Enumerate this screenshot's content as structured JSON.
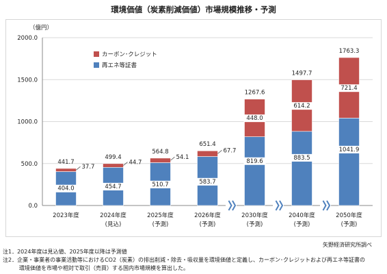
{
  "title": "環境価値（炭素削減価値）市場規模推移・予測",
  "colors": {
    "renewable": "#4f81bd",
    "credit": "#c0504d",
    "grid": "#d9d9d9",
    "axis": "#888888"
  },
  "chart_data": {
    "type": "bar",
    "stacked": true,
    "unit_label": "（億円）",
    "ylim": [
      0,
      2000
    ],
    "y_ticks": [
      "0.0",
      "500.0",
      "1000.0",
      "1500.0",
      "2000.0"
    ],
    "y_tick_values": [
      0,
      500,
      1000,
      1500,
      2000
    ],
    "grid": true,
    "legend_position": "top-left",
    "categories": [
      "2023年度",
      "2024年度",
      "2025年度",
      "2026年度",
      "2030年度",
      "2040年度",
      "2050年度"
    ],
    "category_sublabels": [
      "",
      "(見込)",
      "(予測)",
      "(予測)",
      "(予測)",
      "(予測)",
      "(予測)"
    ],
    "axis_breaks_before": [
      4,
      5,
      6
    ],
    "series": [
      {
        "name": "再エネ等証書",
        "color_key": "renewable",
        "values": [
          404.0,
          454.7,
          510.7,
          583.7,
          819.6,
          883.5,
          1041.9
        ]
      },
      {
        "name": "カーボン･クレジット",
        "color_key": "credit",
        "values": [
          37.7,
          44.7,
          54.1,
          67.7,
          448.0,
          614.2,
          721.4
        ]
      }
    ],
    "totals": [
      441.7,
      499.4,
      564.8,
      651.4,
      1267.6,
      1497.7,
      1763.3
    ],
    "labels": {
      "renewable": [
        "404.0",
        "454.7",
        "510.7",
        "583.7",
        "819.6",
        "883.5",
        "1041.9"
      ],
      "credit": [
        "37.7",
        "44.7",
        "54.1",
        "67.7",
        "448.0",
        "614.2",
        "721.4"
      ],
      "totals": [
        "441.7",
        "499.4",
        "564.8",
        "651.4",
        "1267.6",
        "1497.7",
        "1763.3"
      ]
    }
  },
  "source": "矢野経済研究所調べ",
  "notes": [
    "注1．2024年度は見込値、2025年度以降は予測値",
    "注2．企業・事業者の事業活動等におけるCO2（炭素）の排出削減・除去・吸収量を環境価値と定義し、カーボン･クレジットおよび再エネ等証書の",
    "　　　環境価値を市場や相対で取引（売買）する国内市場規模を算出した。"
  ]
}
